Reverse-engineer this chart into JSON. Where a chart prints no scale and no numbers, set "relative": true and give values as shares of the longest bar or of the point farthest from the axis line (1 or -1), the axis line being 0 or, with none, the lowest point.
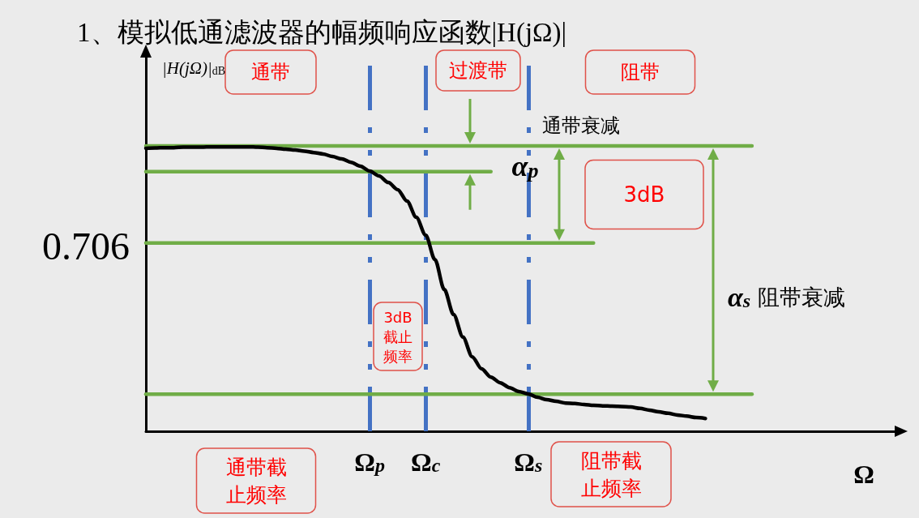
{
  "chart_data": {
    "type": "line",
    "relative": true,
    "title": "1、模拟低通滤波器的幅频响应函数|H(jΩ)|",
    "xlabel": "Ω",
    "ylabel": "|H(jΩ)|$_{dB}$",
    "marker": "none",
    "grid": false,
    "categories": [
      null,
      null,
      null,
      null,
      null,
      null,
      null,
      null,
      null,
      null,
      null,
      null,
      null,
      null,
      null,
      null,
      null,
      null,
      null,
      null,
      null,
      null,
      null,
      null,
      "Ω$_{p}$",
      null,
      null,
      null,
      null,
      null,
      "Ω$_{c}$",
      null,
      null,
      null,
      null,
      null,
      null,
      null,
      null,
      null,
      null,
      "Ω$_{s}$",
      null,
      null,
      null,
      null,
      null,
      null,
      null,
      null,
      null,
      null,
      null,
      null,
      null,
      null,
      null,
      null,
      null,
      null,
      null,
      null,
      null,
      null,
      null,
      null,
      null,
      null,
      null,
      null,
      null,
      null,
      null,
      null,
      null,
      null,
      null,
      null,
      null,
      null,
      null,
      null
    ],
    "series": [
      {
        "color": "#000000",
        "values": [
          0.992,
          0.993,
          0.994,
          0.994,
          0.996,
          0.996,
          0.996,
          0.997,
          0.997,
          0.997,
          0.997,
          0.997,
          0.996,
          0.994,
          0.992,
          0.989,
          0.986,
          0.982,
          0.977,
          0.972,
          0.963,
          0.955,
          0.943,
          0.929,
          0.912,
          0.895,
          0.872,
          0.847,
          0.807,
          0.75,
          0.688,
          0.602,
          0.497,
          0.409,
          0.33,
          0.261,
          0.219,
          0.19,
          0.17,
          0.153,
          0.139,
          0.131,
          0.119,
          0.111,
          0.105,
          0.099,
          0.097,
          0.094,
          0.091,
          0.089,
          0.088,
          0.087,
          0.085,
          0.08,
          0.074,
          0.068,
          0.063,
          0.057,
          0.053,
          0.048,
          0.045,
          null,
          null,
          null,
          null,
          null,
          null,
          null,
          null,
          null,
          null,
          null,
          null,
          null,
          null,
          null,
          null,
          null,
          null,
          null,
          null,
          null
        ]
      },
      {
        "color": "#70ad47",
        "values": [
          1,
          1,
          1,
          1,
          1,
          1,
          1,
          1,
          1,
          1,
          1,
          1,
          1,
          1,
          1,
          1,
          1,
          1,
          1,
          1,
          1,
          1,
          1,
          1,
          1,
          1,
          1,
          1,
          1,
          1,
          1,
          1,
          1,
          1,
          1,
          1,
          1,
          1,
          1,
          1,
          1,
          1,
          1,
          1,
          1,
          1,
          1,
          1,
          1,
          1,
          1,
          1,
          1,
          1,
          1,
          1,
          1,
          1,
          1,
          1,
          1,
          1,
          1,
          1,
          1,
          1,
          null,
          null,
          null,
          null,
          null,
          null,
          null,
          null,
          null,
          null,
          null,
          null,
          null,
          null,
          null,
          null
        ]
      },
      {
        "color": "#70ad47",
        "values": [
          0.91,
          0.91,
          0.91,
          0.91,
          0.91,
          0.91,
          0.91,
          0.91,
          0.91,
          0.91,
          0.91,
          0.91,
          0.91,
          0.91,
          0.91,
          0.91,
          0.91,
          0.91,
          0.91,
          0.91,
          0.91,
          0.91,
          0.91,
          0.91,
          0.91,
          0.91,
          0.91,
          0.91,
          0.91,
          0.91,
          0.91,
          0.91,
          0.91,
          0.91,
          0.91,
          0.91,
          0.91,
          0.91,
          null,
          null,
          null,
          null,
          null,
          null,
          null,
          null,
          null,
          null,
          null,
          null,
          null,
          null,
          null,
          null,
          null,
          null,
          null,
          null,
          null,
          null,
          null,
          null,
          null,
          null,
          null,
          null,
          null,
          null,
          null,
          null,
          null,
          null,
          null,
          null,
          null,
          null,
          null,
          null,
          null,
          null,
          null,
          null
        ]
      },
      {
        "color": "#70ad47",
        "values": [
          0.66,
          0.66,
          0.66,
          0.66,
          0.66,
          0.66,
          0.66,
          0.66,
          0.66,
          0.66,
          0.66,
          0.66,
          0.66,
          0.66,
          0.66,
          0.66,
          0.66,
          0.66,
          0.66,
          0.66,
          0.66,
          0.66,
          0.66,
          0.66,
          0.66,
          0.66,
          0.66,
          0.66,
          0.66,
          0.66,
          0.66,
          0.66,
          0.66,
          0.66,
          0.66,
          0.66,
          0.66,
          0.66,
          0.66,
          0.66,
          0.66,
          0.66,
          0.66,
          0.66,
          0.66,
          0.66,
          0.66,
          0.66,
          0.66,
          null,
          null,
          null,
          null,
          null,
          null,
          null,
          null,
          null,
          null,
          null,
          null,
          null,
          null,
          null,
          null,
          null,
          null,
          null,
          null,
          null,
          null,
          null,
          null,
          null,
          null,
          null,
          null,
          null,
          null,
          null,
          null,
          null
        ]
      },
      {
        "color": "#70ad47",
        "values": [
          0.13,
          0.13,
          0.13,
          0.13,
          0.13,
          0.13,
          0.13,
          0.13,
          0.13,
          0.13,
          0.13,
          0.13,
          0.13,
          0.13,
          0.13,
          0.13,
          0.13,
          0.13,
          0.13,
          0.13,
          0.13,
          0.13,
          0.13,
          0.13,
          0.13,
          0.13,
          0.13,
          0.13,
          0.13,
          0.13,
          0.13,
          0.13,
          0.13,
          0.13,
          0.13,
          0.13,
          0.13,
          0.13,
          0.13,
          0.13,
          0.13,
          0.13,
          0.13,
          0.13,
          0.13,
          0.13,
          0.13,
          0.13,
          0.13,
          0.13,
          0.13,
          0.13,
          0.13,
          0.13,
          0.13,
          0.13,
          0.13,
          0.13,
          0.13,
          0.13,
          0.13,
          0.13,
          0.13,
          0.13,
          0.13,
          0.13,
          null,
          null,
          null,
          null,
          null,
          null,
          null,
          null,
          null,
          null,
          null,
          null,
          null,
          null,
          null,
          null
        ]
      }
    ],
    "ref_lines": [
      {
        "axis": "x",
        "value": "Ω$_{p}$",
        "color": "#4472c4",
        "line_style": "dashed"
      },
      {
        "axis": "x",
        "value": "Ω$_{c}$",
        "color": "#4472c4",
        "line_style": "dashed"
      },
      {
        "axis": "x",
        "value": "Ω$_{s}$",
        "color": "#4472c4",
        "line_style": "dashed"
      }
    ],
    "annotations": [
      "通带",
      "过渡带",
      "阻带",
      "通带衰减",
      "α$_{p}$",
      "3dB",
      "α$_{s}$ 阻带衰减",
      "3dB截止频率",
      "通带截止频率",
      "阻带截止频率",
      "0.706"
    ]
  }
}
